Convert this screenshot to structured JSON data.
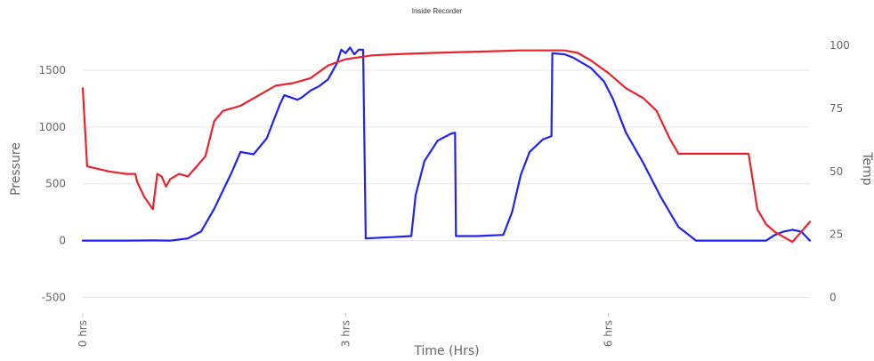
{
  "chart_data": {
    "type": "line",
    "title": "Inside Recorder",
    "xlabel": "Time (Hrs)",
    "ylabel_left": "Pressure",
    "ylabel_right": "Temp",
    "xlim": [
      0,
      8.3
    ],
    "ylim_left": [
      -500,
      1750
    ],
    "ylim_right": [
      0,
      100
    ],
    "left_ticks": [
      -500,
      0,
      500,
      1000,
      1500
    ],
    "right_ticks": [
      0,
      25,
      50,
      75,
      100
    ],
    "x_ticks": [
      {
        "value": 0,
        "label": "0 hrs"
      },
      {
        "value": 3,
        "label": "3 hrs"
      },
      {
        "value": 6,
        "label": "6 hrs"
      }
    ],
    "grid": true,
    "colors": {
      "pressure": "#2222ee",
      "temp": "#e8232f",
      "grid": "#e6e6e6",
      "text": "#666666"
    },
    "series": [
      {
        "axis": "left",
        "color": "#2222ee",
        "points": [
          [
            0,
            0
          ],
          [
            0.5,
            0
          ],
          [
            0.8,
            2
          ],
          [
            1.0,
            0
          ],
          [
            1.2,
            20
          ],
          [
            1.35,
            80
          ],
          [
            1.5,
            280
          ],
          [
            1.7,
            600
          ],
          [
            1.8,
            780
          ],
          [
            1.95,
            760
          ],
          [
            2.1,
            900
          ],
          [
            2.25,
            1200
          ],
          [
            2.3,
            1280
          ],
          [
            2.45,
            1240
          ],
          [
            2.5,
            1260
          ],
          [
            2.6,
            1320
          ],
          [
            2.7,
            1360
          ],
          [
            2.8,
            1420
          ],
          [
            2.9,
            1560
          ],
          [
            2.95,
            1680
          ],
          [
            3.0,
            1650
          ],
          [
            3.05,
            1700
          ],
          [
            3.1,
            1640
          ],
          [
            3.15,
            1680
          ],
          [
            3.2,
            1680
          ],
          [
            3.23,
            20
          ],
          [
            3.5,
            30
          ],
          [
            3.75,
            40
          ],
          [
            3.8,
            400
          ],
          [
            3.9,
            700
          ],
          [
            4.05,
            880
          ],
          [
            4.2,
            940
          ],
          [
            4.25,
            950
          ],
          [
            4.26,
            40
          ],
          [
            4.5,
            40
          ],
          [
            4.8,
            50
          ],
          [
            4.9,
            250
          ],
          [
            5.0,
            580
          ],
          [
            5.1,
            780
          ],
          [
            5.25,
            890
          ],
          [
            5.35,
            920
          ],
          [
            5.36,
            1650
          ],
          [
            5.5,
            1640
          ],
          [
            5.6,
            1610
          ],
          [
            5.8,
            1520
          ],
          [
            5.95,
            1400
          ],
          [
            6.05,
            1250
          ],
          [
            6.2,
            950
          ],
          [
            6.4,
            680
          ],
          [
            6.6,
            380
          ],
          [
            6.8,
            120
          ],
          [
            6.9,
            60
          ],
          [
            7.0,
            0
          ],
          [
            7.3,
            0
          ],
          [
            7.6,
            0
          ],
          [
            7.8,
            0
          ],
          [
            7.9,
            50
          ],
          [
            8.0,
            80
          ],
          [
            8.1,
            95
          ],
          [
            8.2,
            80
          ],
          [
            8.3,
            0
          ]
        ]
      },
      {
        "axis": "right",
        "color": "#e8232f",
        "points": [
          [
            0,
            83
          ],
          [
            0.05,
            52
          ],
          [
            0.3,
            50
          ],
          [
            0.5,
            49
          ],
          [
            0.6,
            49
          ],
          [
            0.62,
            46
          ],
          [
            0.7,
            40
          ],
          [
            0.8,
            35
          ],
          [
            0.85,
            49
          ],
          [
            0.9,
            48
          ],
          [
            0.95,
            44
          ],
          [
            1.0,
            47
          ],
          [
            1.1,
            49
          ],
          [
            1.2,
            48
          ],
          [
            1.3,
            52
          ],
          [
            1.4,
            56
          ],
          [
            1.5,
            70
          ],
          [
            1.6,
            74
          ],
          [
            1.8,
            76
          ],
          [
            2.0,
            80
          ],
          [
            2.2,
            84
          ],
          [
            2.4,
            85
          ],
          [
            2.6,
            87
          ],
          [
            2.8,
            92
          ],
          [
            3.0,
            94.5
          ],
          [
            3.3,
            96
          ],
          [
            3.6,
            96.5
          ],
          [
            4.0,
            97
          ],
          [
            4.5,
            97.5
          ],
          [
            5.0,
            98
          ],
          [
            5.3,
            98
          ],
          [
            5.5,
            98
          ],
          [
            5.65,
            97
          ],
          [
            5.8,
            94
          ],
          [
            6.0,
            89
          ],
          [
            6.2,
            83
          ],
          [
            6.4,
            79
          ],
          [
            6.55,
            74
          ],
          [
            6.7,
            63
          ],
          [
            6.8,
            57
          ],
          [
            7.0,
            57
          ],
          [
            7.3,
            57
          ],
          [
            7.5,
            57
          ],
          [
            7.6,
            57
          ],
          [
            7.65,
            46
          ],
          [
            7.7,
            35
          ],
          [
            7.8,
            29
          ],
          [
            7.9,
            26
          ],
          [
            8.05,
            23
          ],
          [
            8.1,
            22
          ],
          [
            8.2,
            26
          ],
          [
            8.3,
            30
          ]
        ]
      }
    ]
  }
}
